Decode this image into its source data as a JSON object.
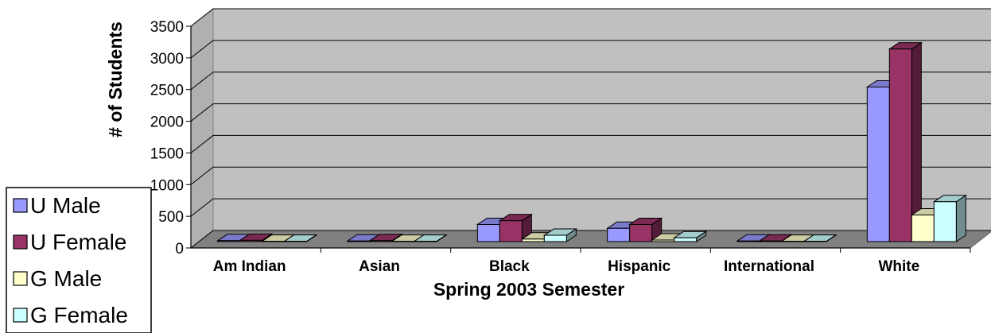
{
  "chart_data": {
    "type": "bar",
    "xlabel": "Spring 2003 Semester",
    "ylabel": "# of Students",
    "ylim": [
      0,
      3500
    ],
    "yticks": [
      0,
      500,
      1000,
      1500,
      2000,
      2500,
      3000,
      3500
    ],
    "categories": [
      "Am Indian",
      "Asian",
      "Black",
      "Hispanic",
      "International",
      "White"
    ],
    "series": [
      {
        "name": "U Male",
        "color": "#9999ff",
        "values": [
          15,
          10,
          270,
          210,
          10,
          2440
        ]
      },
      {
        "name": "U Female",
        "color": "#993366",
        "values": [
          20,
          15,
          330,
          270,
          10,
          3040
        ]
      },
      {
        "name": "G Male",
        "color": "#ffffcc",
        "values": [
          5,
          5,
          40,
          25,
          5,
          420
        ]
      },
      {
        "name": "G Female",
        "color": "#ccffff",
        "values": [
          5,
          5,
          100,
          60,
          5,
          630
        ]
      }
    ],
    "grid": true,
    "legend_position": "bottom-left"
  }
}
